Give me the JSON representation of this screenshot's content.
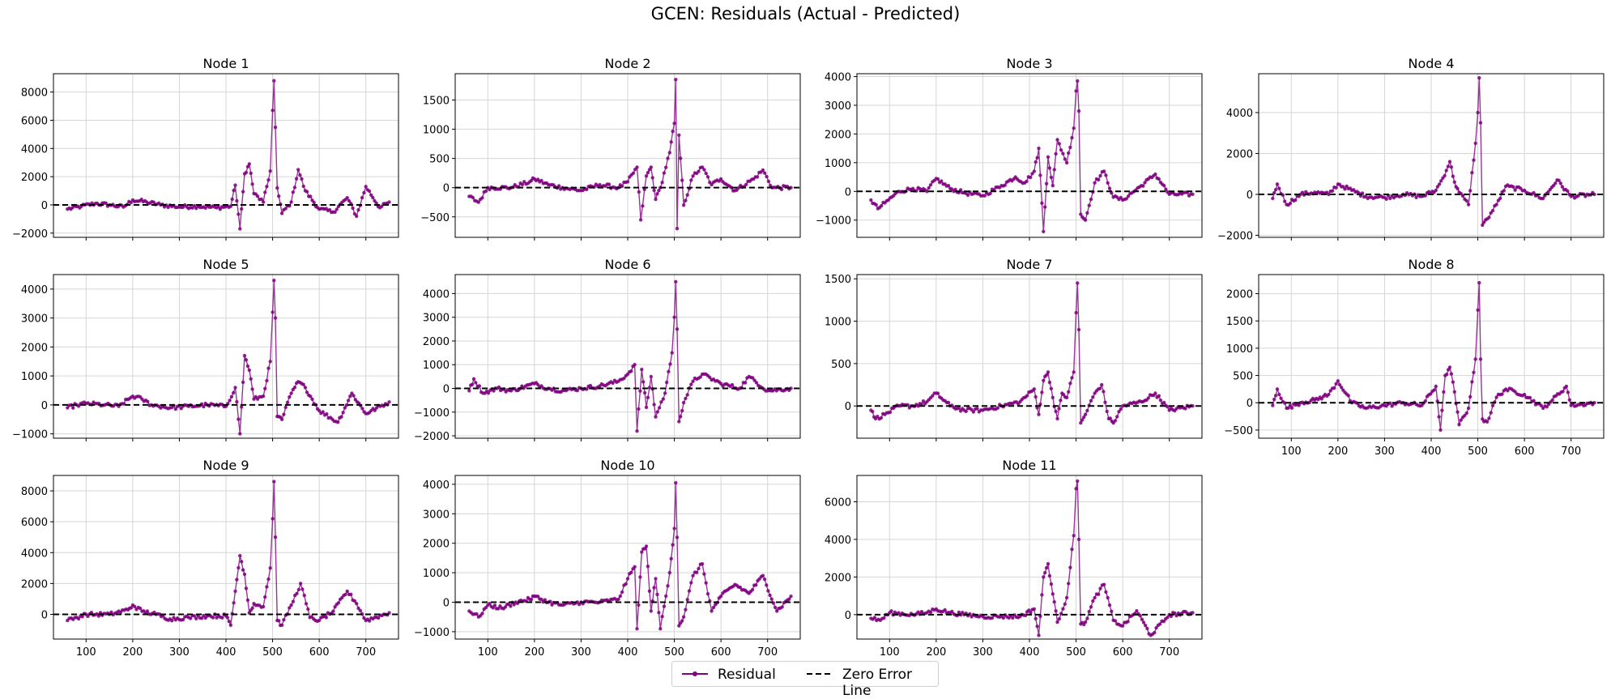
{
  "chart_data": {
    "type": "line",
    "title": "GCEN: Residuals (Actual - Predicted)",
    "xlim": [
      30,
      770
    ],
    "x_ticks": [
      100,
      200,
      300,
      400,
      500,
      600,
      700
    ],
    "grid": true,
    "legend_placement": "bottom-center",
    "legend": [
      "Residual",
      "Zero Error Line"
    ],
    "colors": {
      "residual": "#800080",
      "zero_line": "#000000"
    },
    "baseline_y": 0,
    "panels": [
      {
        "title": "Node 1",
        "ylim": [
          -2300,
          9300
        ],
        "y_ticks": [
          -2000,
          0,
          2000,
          4000,
          6000,
          8000
        ],
        "series": [
          {
            "name": "Residual",
            "x": [
              60,
              90,
              120,
              150,
              180,
              200,
              230,
              260,
              300,
              340,
              380,
              410,
              420,
              430,
              440,
              450,
              460,
              480,
              495,
              500,
              503,
              506,
              510,
              520,
              540,
              555,
              570,
              600,
              630,
              660,
              680,
              700,
              730,
              750
            ],
            "values": [
              -300,
              -100,
              100,
              0,
              -150,
              350,
              200,
              0,
              -150,
              -100,
              -200,
              -100,
              1400,
              -1700,
              2200,
              2900,
              800,
              200,
              2400,
              6700,
              8800,
              5500,
              1200,
              -600,
              200,
              2500,
              1000,
              -300,
              -500,
              500,
              -800,
              1300,
              -200,
              200
            ]
          }
        ]
      },
      {
        "title": "Node 2",
        "ylim": [
          -850,
          1950
        ],
        "y_ticks": [
          -500,
          0,
          500,
          1000,
          1500
        ],
        "series": [
          {
            "name": "Residual",
            "x": [
              60,
              80,
              100,
              150,
              190,
              200,
              230,
              260,
              300,
              340,
              380,
              400,
              420,
              428,
              440,
              450,
              460,
              470,
              490,
              500,
              503,
              506,
              510,
              520,
              540,
              560,
              580,
              600,
              630,
              670,
              690,
              710,
              750
            ],
            "values": [
              -150,
              -250,
              0,
              0,
              100,
              150,
              50,
              0,
              -50,
              50,
              0,
              100,
              350,
              -550,
              200,
              350,
              -200,
              0,
              600,
              1100,
              1850,
              -700,
              900,
              -300,
              200,
              350,
              50,
              150,
              -50,
              150,
              300,
              0,
              0
            ]
          }
        ]
      },
      {
        "title": "Node 3",
        "ylim": [
          -1600,
          4100
        ],
        "y_ticks": [
          -1000,
          0,
          1000,
          2000,
          3000,
          4000
        ],
        "series": [
          {
            "name": "Residual",
            "x": [
              60,
              75,
              90,
              120,
              150,
              180,
              200,
              230,
              260,
              300,
              340,
              370,
              390,
              410,
              420,
              430,
              440,
              450,
              460,
              480,
              495,
              500,
              503,
              506,
              510,
              520,
              540,
              560,
              580,
              600,
              640,
              670,
              700,
              750
            ],
            "values": [
              -300,
              -600,
              -400,
              0,
              100,
              0,
              450,
              100,
              -50,
              -150,
              200,
              500,
              300,
              700,
              1500,
              -1400,
              1200,
              200,
              1800,
              1000,
              2200,
              3500,
              3850,
              2800,
              -800,
              -1000,
              300,
              700,
              -200,
              -300,
              200,
              600,
              -100,
              -100
            ]
          }
        ]
      },
      {
        "title": "Node 4",
        "ylim": [
          -2100,
          5900
        ],
        "y_ticks": [
          -2000,
          0,
          2000,
          4000
        ],
        "series": [
          {
            "name": "Residual",
            "x": [
              60,
              70,
              90,
              120,
              150,
              180,
              200,
              230,
              260,
              300,
              340,
              380,
              410,
              425,
              440,
              450,
              460,
              480,
              495,
              500,
              503,
              506,
              510,
              520,
              540,
              560,
              600,
              640,
              670,
              700,
              750
            ],
            "values": [
              -200,
              500,
              -500,
              0,
              100,
              0,
              500,
              200,
              -100,
              -150,
              0,
              -100,
              200,
              800,
              1600,
              600,
              100,
              -500,
              2500,
              4000,
              5700,
              3500,
              -1500,
              -1200,
              -500,
              400,
              200,
              -200,
              700,
              -100,
              0
            ]
          }
        ]
      },
      {
        "title": "Node 5",
        "ylim": [
          -1150,
          4500
        ],
        "y_ticks": [
          -1000,
          0,
          1000,
          2000,
          3000,
          4000
        ],
        "series": [
          {
            "name": "Residual",
            "x": [
              60,
              80,
              100,
              140,
              170,
              200,
              220,
              240,
              280,
              320,
              360,
              400,
              420,
              430,
              440,
              450,
              460,
              480,
              495,
              500,
              503,
              506,
              510,
              520,
              540,
              555,
              570,
              600,
              640,
              670,
              700,
              750
            ],
            "values": [
              -100,
              0,
              50,
              0,
              -50,
              300,
              200,
              0,
              -100,
              -50,
              0,
              -50,
              600,
              -1000,
              1700,
              1200,
              200,
              300,
              1500,
              3200,
              4300,
              3000,
              -400,
              -500,
              400,
              800,
              600,
              -200,
              -600,
              400,
              -300,
              100
            ]
          }
        ]
      },
      {
        "title": "Node 6",
        "ylim": [
          -2100,
          4800
        ],
        "y_ticks": [
          -2000,
          -1000,
          0,
          1000,
          2000,
          3000,
          4000
        ],
        "series": [
          {
            "name": "Residual",
            "x": [
              60,
              70,
              90,
              120,
              150,
              200,
              230,
              260,
              300,
              340,
              380,
              400,
              415,
              420,
              430,
              440,
              450,
              460,
              480,
              495,
              500,
              503,
              506,
              510,
              520,
              540,
              560,
              600,
              640,
              660,
              700,
              750
            ],
            "values": [
              -100,
              400,
              -200,
              0,
              -100,
              200,
              0,
              -100,
              0,
              100,
              300,
              600,
              1000,
              -1800,
              800,
              -800,
              500,
              -1200,
              -200,
              1500,
              3000,
              4500,
              2500,
              -1400,
              -600,
              300,
              600,
              200,
              0,
              500,
              -100,
              0
            ]
          }
        ]
      },
      {
        "title": "Node 7",
        "ylim": [
          -380,
          1550
        ],
        "y_ticks": [
          0,
          500,
          1000,
          1500
        ],
        "series": [
          {
            "name": "Residual",
            "x": [
              60,
              70,
              90,
              120,
              150,
              180,
              200,
              230,
              260,
              300,
              340,
              380,
              410,
              420,
              430,
              440,
              450,
              460,
              470,
              480,
              495,
              500,
              503,
              506,
              510,
              520,
              540,
              555,
              570,
              580,
              600,
              640,
              670,
              700,
              750
            ],
            "values": [
              -50,
              -150,
              -100,
              0,
              0,
              50,
              150,
              0,
              -50,
              -50,
              0,
              50,
              200,
              -100,
              300,
              400,
              100,
              -150,
              150,
              100,
              400,
              1100,
              1450,
              900,
              -200,
              -100,
              150,
              250,
              -150,
              -200,
              0,
              50,
              150,
              -50,
              0
            ]
          }
        ]
      },
      {
        "title": "Node 8",
        "ylim": [
          -650,
          2350
        ],
        "y_ticks": [
          -500,
          0,
          500,
          1000,
          1500,
          2000
        ],
        "series": [
          {
            "name": "Residual",
            "x": [
              60,
              70,
              90,
              120,
              150,
              180,
              200,
              230,
              260,
              300,
              340,
              380,
              410,
              420,
              430,
              440,
              450,
              460,
              480,
              495,
              500,
              503,
              506,
              510,
              520,
              540,
              560,
              600,
              640,
              660,
              690,
              700,
              750
            ],
            "values": [
              -50,
              250,
              -100,
              0,
              50,
              150,
              400,
              0,
              -100,
              -50,
              0,
              -50,
              300,
              -500,
              500,
              650,
              200,
              -400,
              -100,
              800,
              1700,
              2200,
              800,
              -300,
              -350,
              100,
              250,
              150,
              -100,
              50,
              300,
              -50,
              0
            ]
          }
        ]
      },
      {
        "title": "Node 9",
        "ylim": [
          -1600,
          9000
        ],
        "y_ticks": [
          0,
          2000,
          4000,
          6000,
          8000
        ],
        "series": [
          {
            "name": "Residual",
            "x": [
              60,
              80,
              100,
              150,
              190,
              200,
              220,
              250,
              280,
              320,
              360,
              400,
              410,
              420,
              430,
              440,
              450,
              460,
              480,
              495,
              500,
              503,
              506,
              510,
              520,
              540,
              560,
              580,
              600,
              630,
              660,
              680,
              700,
              750
            ],
            "values": [
              -400,
              -200,
              0,
              0,
              300,
              600,
              200,
              0,
              -300,
              -200,
              -100,
              -100,
              -700,
              1500,
              3800,
              2600,
              100,
              700,
              500,
              3000,
              6200,
              8600,
              5000,
              -400,
              -700,
              600,
              2000,
              -200,
              -400,
              200,
              1500,
              700,
              -400,
              100
            ]
          }
        ]
      },
      {
        "title": "Node 10",
        "ylim": [
          -1250,
          4300
        ],
        "y_ticks": [
          -1000,
          0,
          1000,
          2000,
          3000,
          4000
        ],
        "series": [
          {
            "name": "Residual",
            "x": [
              60,
              80,
              100,
              130,
              160,
              190,
              200,
              230,
              260,
              300,
              340,
              380,
              400,
              415,
              420,
              430,
              440,
              450,
              460,
              470,
              490,
              500,
              503,
              506,
              510,
              520,
              540,
              560,
              580,
              600,
              630,
              660,
              690,
              720,
              750
            ],
            "values": [
              -300,
              -500,
              -100,
              -200,
              0,
              100,
              200,
              0,
              -100,
              0,
              0,
              100,
              800,
              1200,
              -900,
              1700,
              1900,
              -300,
              800,
              -900,
              1000,
              2500,
              4050,
              2200,
              -800,
              -500,
              900,
              1300,
              -300,
              200,
              600,
              300,
              900,
              -300,
              200
            ]
          }
        ]
      },
      {
        "title": "Node 11",
        "ylim": [
          -1300,
          7400
        ],
        "y_ticks": [
          0,
          2000,
          4000,
          6000
        ],
        "series": [
          {
            "name": "Residual",
            "x": [
              60,
              80,
              100,
              150,
              180,
              200,
              230,
              260,
              300,
              340,
              380,
              410,
              420,
              430,
              440,
              450,
              460,
              480,
              495,
              500,
              503,
              506,
              510,
              520,
              540,
              560,
              580,
              600,
              630,
              660,
              700,
              750
            ],
            "values": [
              -200,
              -300,
              100,
              0,
              100,
              300,
              100,
              0,
              -100,
              -100,
              -100,
              300,
              -1100,
              2000,
              2700,
              1100,
              -400,
              900,
              4200,
              6700,
              7100,
              4000,
              -500,
              -400,
              900,
              1600,
              -300,
              -600,
              200,
              -1100,
              0,
              100
            ]
          }
        ]
      }
    ]
  }
}
